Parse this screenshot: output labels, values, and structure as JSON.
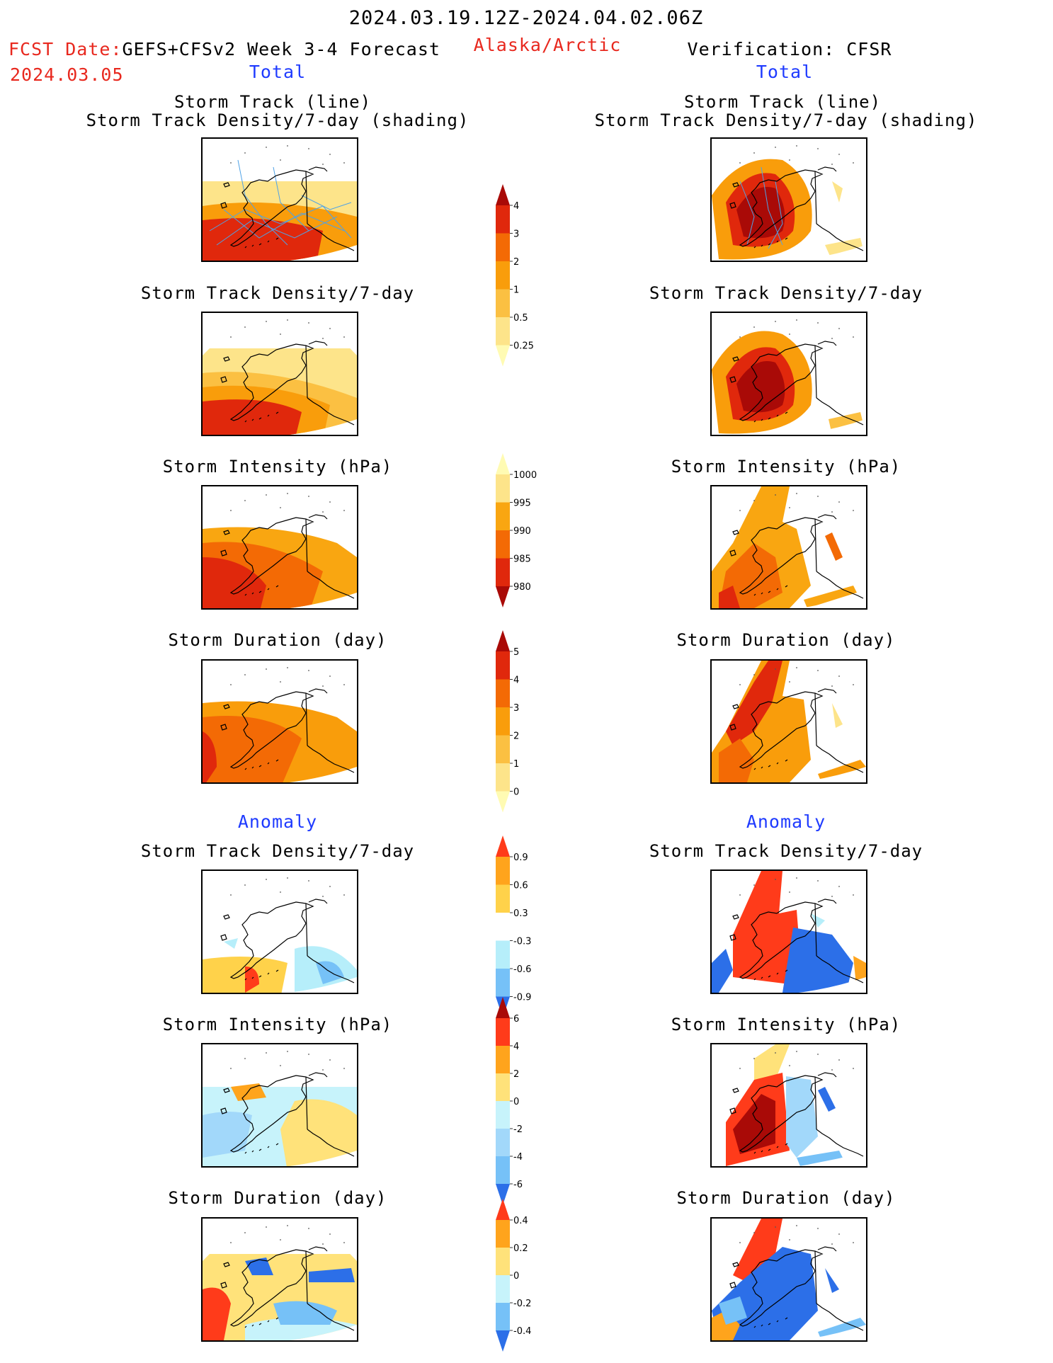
{
  "header": {
    "period": "2024.03.19.12Z-2024.04.02.06Z",
    "fcst_label": "FCST Date:",
    "fcst_model": "GEFS+CFSv2 Week 3-4 Forecast",
    "fcst_date": "2024.03.05",
    "region": "Alaska/Arctic",
    "verification": "Verification: CFSR"
  },
  "sections": {
    "total_left": "Total",
    "total_right": "Total",
    "anomaly_left": "Anomaly",
    "anomaly_right": "Anomaly"
  },
  "titles": {
    "track_line": "Storm Track (line)",
    "track_shading": "Storm Track Density/7-day (shading)",
    "track_density": "Storm Track Density/7-day",
    "intensity": "Storm Intensity (hPa)",
    "duration": "Storm Duration (day)"
  },
  "colorbars": {
    "density": {
      "labels": [
        "0.25",
        "0.5",
        "1",
        "2",
        "3",
        "4"
      ],
      "colors": [
        "#fffbb3",
        "#fde48a",
        "#fbc042",
        "#f99d0b",
        "#f36a05",
        "#e0280c",
        "#a90a07"
      ]
    },
    "intensity": {
      "labels": [
        "1000",
        "995",
        "990",
        "985",
        "980"
      ],
      "colors": [
        "#fffbb3",
        "#fde48a",
        "#f9a611",
        "#f36a05",
        "#e0280c",
        "#a90a07"
      ]
    },
    "duration": {
      "labels": [
        "0",
        "1",
        "2",
        "3",
        "4",
        "5"
      ],
      "colors": [
        "#fffbb3",
        "#fde48a",
        "#fbc042",
        "#f99d0b",
        "#f36a05",
        "#e0280c",
        "#a90a07"
      ]
    },
    "density_anom": {
      "labels": [
        "0.9",
        "0.6",
        "0.3",
        "-0.3",
        "-0.6",
        "-0.9"
      ],
      "colors": [
        "#ff3b1a",
        "#ffa41c",
        "#ffd24a",
        "#ffffff",
        "#b6eefa",
        "#76c1f7",
        "#2c6fe8"
      ]
    },
    "intensity_anom": {
      "labels": [
        "6",
        "4",
        "2",
        "0",
        "-2",
        "-4",
        "-6"
      ],
      "colors": [
        "#a90a07",
        "#ff3b1a",
        "#ffa41c",
        "#ffe27a",
        "#c7f3fb",
        "#a2d8fa",
        "#76c1f7",
        "#2c6fe8"
      ]
    },
    "duration_anom": {
      "labels": [
        "0.4",
        "0.2",
        "0",
        "-0.2",
        "-0.4"
      ],
      "colors": [
        "#ff3b1a",
        "#ffa41c",
        "#ffe27a",
        "#c7f3fb",
        "#76c1f7",
        "#2c6fe8"
      ]
    }
  },
  "colors": {
    "title_red": "#e8281e",
    "section_blue": "#1f3bff"
  }
}
